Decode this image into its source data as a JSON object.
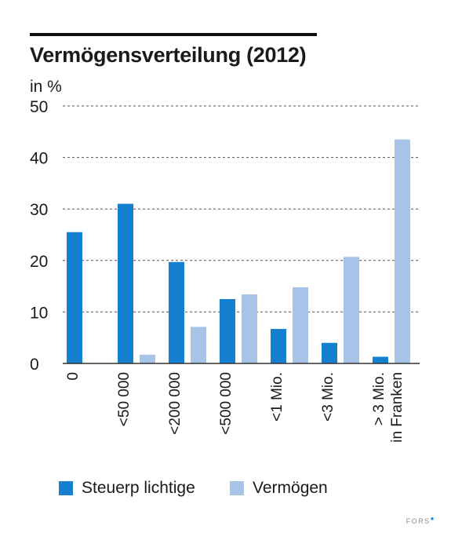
{
  "title": "Vermögensverteilung (2012)",
  "footer": "FORS",
  "colors": {
    "steuerpflichtige": "#1580cf",
    "vermoegen": "#a7c3e6"
  },
  "chart_data": {
    "type": "bar",
    "title": "Vermögensverteilung (2012)",
    "ylabel": "in %",
    "xlabel": "in Franken",
    "ylim": [
      0,
      50
    ],
    "yticks": [
      0,
      10,
      20,
      30,
      40,
      50
    ],
    "grid": true,
    "legend_position": "bottom",
    "categories": [
      "0",
      "<50 000",
      "<200 000",
      "<500 000",
      "<1 Mio.",
      "<3 Mio.",
      "> 3 Mio."
    ],
    "series": [
      {
        "name": "Steuerp lichtige",
        "values": [
          25.5,
          31,
          19.7,
          12.5,
          6.7,
          4,
          1.3
        ]
      },
      {
        "name": "Vermögen",
        "values": [
          null,
          1.7,
          7.1,
          13.4,
          14.8,
          20.7,
          43.5
        ]
      }
    ]
  }
}
